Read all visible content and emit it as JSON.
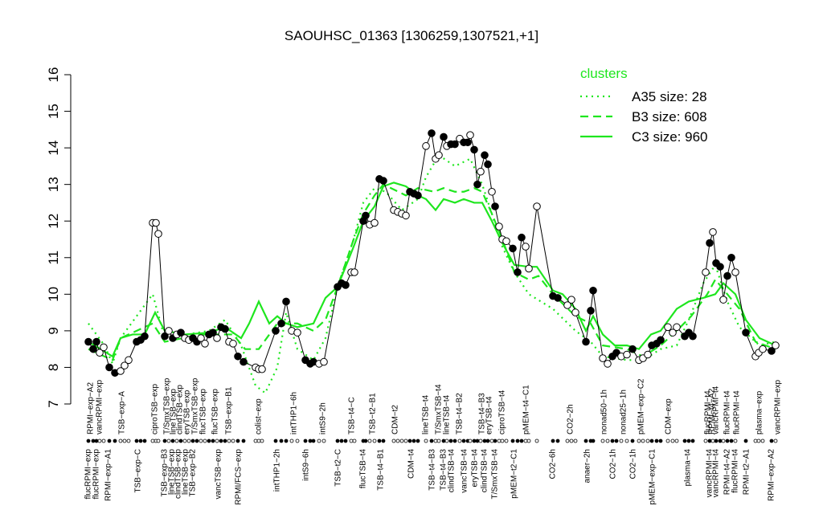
{
  "chart_data": {
    "type": "line",
    "title": "SAOUHSC_01363 [1306259,1307521,+1]",
    "ylim": [
      7,
      16
    ],
    "yticks": [
      7,
      8,
      9,
      10,
      11,
      12,
      13,
      14,
      15,
      16
    ],
    "xlim": [
      95,
      975
    ],
    "legend_title": "clusters",
    "legend_color": "#1ee61e",
    "series": [
      {
        "name": "A35 size: 28",
        "color": "#1ee61e",
        "dash": "dotted",
        "x": [
          110,
          130,
          140,
          150,
          190,
          205,
          260,
          280,
          300,
          318,
          330,
          345,
          356,
          370,
          390,
          405,
          420,
          440,
          452,
          466,
          480,
          500,
          520,
          530,
          546,
          566,
          585,
          600,
          612,
          625,
          640,
          658,
          688,
          716,
          735,
          750,
          780,
          800,
          822,
          842,
          857,
          875,
          890,
          905,
          920,
          945,
          965
        ],
        "values": [
          9.2,
          8.6,
          8.1,
          8.8,
          10.0,
          8.8,
          9.0,
          9.3,
          8.6,
          7.5,
          7.3,
          8.0,
          9.5,
          8.5,
          8.2,
          8.8,
          10.2,
          11.5,
          12.5,
          12.9,
          12.8,
          12.3,
          12.6,
          13.2,
          13.8,
          13.5,
          13.7,
          13.0,
          12.2,
          11.3,
          10.6,
          10.0,
          9.6,
          9.0,
          8.7,
          8.3,
          8.2,
          8.2,
          8.5,
          8.6,
          9.3,
          10.3,
          10.8,
          9.8,
          9.1,
          8.6,
          8.7
        ]
      },
      {
        "name": "B3 size: 608",
        "color": "#1ee61e",
        "dash": "dashed",
        "x": [
          110,
          140,
          150,
          190,
          205,
          250,
          290,
          305,
          322,
          345,
          370,
          390,
          405,
          420,
          440,
          452,
          466,
          477,
          505,
          520,
          540,
          552,
          566,
          577,
          590,
          600,
          612,
          625,
          640,
          658,
          670,
          688,
          716,
          735,
          750,
          780,
          800,
          822,
          842,
          860,
          880,
          890,
          905,
          920,
          940,
          965
        ],
        "values": [
          8.5,
          8.2,
          8.8,
          9.2,
          8.7,
          8.9,
          8.9,
          8.5,
          8.5,
          9.2,
          9.2,
          9.0,
          9.3,
          10.2,
          11.5,
          12.2,
          12.7,
          13.0,
          12.7,
          12.9,
          12.8,
          12.9,
          12.8,
          12.8,
          12.9,
          12.8,
          12.2,
          11.5,
          10.6,
          10.4,
          10.5,
          10.0,
          9.4,
          9.2,
          8.6,
          8.5,
          8.3,
          8.6,
          9.0,
          9.4,
          10.0,
          10.4,
          10.0,
          9.6,
          8.7,
          8.5
        ]
      },
      {
        "name": "C3 size: 960",
        "color": "#1ee61e",
        "dash": "solid",
        "x": [
          110,
          125,
          140,
          150,
          165,
          180,
          193,
          205,
          230,
          260,
          280,
          300,
          310,
          322,
          335,
          345,
          356,
          370,
          390,
          405,
          420,
          440,
          452,
          466,
          477,
          490,
          505,
          520,
          530,
          542,
          552,
          566,
          577,
          590,
          600,
          612,
          625,
          640,
          658,
          668,
          688,
          700,
          716,
          729,
          738,
          750,
          765,
          780,
          795,
          810,
          822,
          842,
          857,
          875,
          890,
          900,
          915,
          928,
          945,
          965
        ],
        "values": [
          8.7,
          8.5,
          8.3,
          8.8,
          8.9,
          8.9,
          9.5,
          9.0,
          8.9,
          8.95,
          9.1,
          8.8,
          9.2,
          9.8,
          9.2,
          9.4,
          9.2,
          9.1,
          9.2,
          9.9,
          10.2,
          11.3,
          12.0,
          12.4,
          12.95,
          13.05,
          12.95,
          12.7,
          12.6,
          12.3,
          12.6,
          12.5,
          12.6,
          12.5,
          12.5,
          12.0,
          11.4,
          10.8,
          10.75,
          10.75,
          10.1,
          10.0,
          9.6,
          9.0,
          9.4,
          8.9,
          8.6,
          8.6,
          8.5,
          8.9,
          9.0,
          9.6,
          9.8,
          9.9,
          10.0,
          10.3,
          10.0,
          9.3,
          8.8,
          8.6
        ]
      }
    ],
    "samples": {
      "x": [
        110,
        116,
        120,
        124,
        129,
        136,
        143,
        150,
        155,
        160,
        170,
        175,
        180,
        190,
        194,
        197,
        205,
        210,
        215,
        220,
        225,
        230,
        235,
        240,
        245,
        250,
        255,
        260,
        265,
        270,
        275,
        280,
        285,
        290,
        296,
        303,
        318,
        322,
        326,
        343,
        350,
        356,
        363,
        370,
        380,
        386,
        390,
        397,
        403,
        420,
        425,
        430,
        437,
        441,
        452,
        455,
        460,
        466,
        472,
        477,
        490,
        495,
        500,
        505,
        510,
        515,
        520,
        530,
        537,
        542,
        546,
        552,
        556,
        561,
        566,
        572,
        577,
        582,
        585,
        590,
        594,
        598,
        603,
        607,
        612,
        616,
        621,
        625,
        630,
        638,
        644,
        649,
        654,
        658,
        668,
        688,
        694,
        706,
        711,
        716,
        729,
        735,
        738,
        750,
        756,
        762,
        767,
        773,
        780,
        787,
        795,
        800,
        806,
        811,
        817,
        822,
        831,
        837,
        842,
        852,
        857,
        862,
        878,
        883,
        887,
        891,
        896,
        900,
        905,
        910,
        915,
        928,
        940,
        944,
        949,
        960,
        965
      ],
      "values": [
        8.7,
        8.5,
        8.7,
        8.4,
        8.55,
        8.0,
        7.85,
        7.9,
        8.05,
        8.2,
        8.7,
        8.75,
        8.85,
        11.95,
        11.95,
        11.65,
        8.85,
        9.0,
        8.8,
        8.9,
        8.95,
        8.8,
        8.75,
        8.8,
        8.7,
        8.8,
        8.65,
        8.9,
        8.95,
        8.8,
        9.1,
        9.05,
        8.7,
        8.65,
        8.3,
        8.15,
        8.0,
        7.95,
        7.95,
        9.0,
        9.2,
        9.8,
        9.0,
        8.95,
        8.2,
        8.1,
        8.15,
        8.1,
        8.15,
        10.2,
        10.3,
        10.25,
        10.6,
        10.6,
        12.0,
        12.15,
        11.9,
        11.95,
        13.15,
        13.1,
        12.3,
        12.25,
        12.2,
        12.15,
        12.8,
        12.75,
        12.7,
        14.05,
        14.4,
        13.7,
        13.8,
        14.3,
        14.05,
        14.1,
        14.1,
        14.25,
        14.15,
        14.15,
        14.35,
        13.95,
        13.0,
        13.35,
        13.8,
        13.55,
        12.8,
        12.4,
        11.85,
        11.5,
        11.45,
        11.25,
        10.6,
        11.55,
        11.3,
        10.7,
        12.4,
        9.95,
        9.9,
        9.7,
        9.85,
        9.5,
        8.7,
        9.55,
        10.1,
        8.25,
        8.1,
        8.3,
        8.4,
        8.3,
        8.35,
        8.5,
        8.2,
        8.25,
        8.35,
        8.6,
        8.65,
        8.75,
        9.1,
        8.95,
        9.1,
        8.85,
        8.95,
        8.85,
        10.6,
        11.4,
        11.7,
        10.85,
        10.75,
        9.85,
        10.5,
        11.0,
        10.6,
        8.95,
        8.3,
        8.4,
        8.5,
        8.45,
        8.6
      ],
      "filled": [
        true,
        true,
        true,
        false,
        false,
        true,
        true,
        false,
        false,
        false,
        true,
        true,
        true,
        false,
        false,
        false,
        true,
        false,
        true,
        false,
        true,
        false,
        false,
        true,
        true,
        false,
        false,
        true,
        true,
        false,
        true,
        true,
        false,
        false,
        true,
        true,
        false,
        false,
        false,
        true,
        true,
        true,
        false,
        false,
        true,
        true,
        true,
        false,
        false,
        true,
        true,
        true,
        false,
        false,
        true,
        true,
        false,
        false,
        true,
        true,
        false,
        false,
        false,
        false,
        true,
        true,
        true,
        false,
        true,
        false,
        false,
        true,
        false,
        true,
        true,
        false,
        true,
        true,
        false,
        true,
        true,
        false,
        true,
        true,
        false,
        true,
        false,
        false,
        false,
        true,
        true,
        true,
        false,
        false,
        false,
        true,
        true,
        false,
        false,
        false,
        true,
        true,
        true,
        false,
        false,
        true,
        true,
        false,
        false,
        true,
        false,
        false,
        false,
        true,
        true,
        true,
        false,
        false,
        false,
        true,
        true,
        true,
        false,
        true,
        false,
        true,
        true,
        false,
        true,
        true,
        false,
        true,
        false,
        false,
        false,
        true,
        false
      ]
    },
    "top_labels": [
      {
        "x": 113,
        "label": "RPMI−exp−A2"
      },
      {
        "x": 124,
        "label": "vancRPMI−exp"
      },
      {
        "x": 152,
        "label": "TSB−exp−A"
      },
      {
        "x": 193,
        "label": "ciproTSB−exp"
      },
      {
        "x": 208,
        "label": "T/SmxTSB−exp"
      },
      {
        "x": 216,
        "label": "lineTSB−exp"
      },
      {
        "x": 224,
        "label": "clindTSB−exp"
      },
      {
        "x": 233,
        "label": "eryTSB−exp"
      },
      {
        "x": 243,
        "label": "T/SmxTSB−exp"
      },
      {
        "x": 253,
        "label": "flucTSB−exp"
      },
      {
        "x": 268,
        "label": "flucTSB−exp"
      },
      {
        "x": 285,
        "label": "TSB−exp−B1"
      },
      {
        "x": 322,
        "label": "colist−exp"
      },
      {
        "x": 366,
        "label": "intTHP1−6h"
      },
      {
        "x": 402,
        "label": "intS9−2h"
      },
      {
        "x": 438,
        "label": "TSB−t4−C"
      },
      {
        "x": 464,
        "label": "TSB−t2−B1"
      },
      {
        "x": 492,
        "label": "CDM−t2"
      },
      {
        "x": 530,
        "label": "lineTSB−t4"
      },
      {
        "x": 546,
        "label": "T/SmxTSB−t4"
      },
      {
        "x": 556,
        "label": "lineTSB−t4"
      },
      {
        "x": 572,
        "label": "TSB−t4−B2"
      },
      {
        "x": 600,
        "label": "TSB−t4−B3"
      },
      {
        "x": 609,
        "label": "eryTSB−t4"
      },
      {
        "x": 625,
        "label": "ciproTSB−t4"
      },
      {
        "x": 655,
        "label": "pMEM−t4−C1"
      },
      {
        "x": 710,
        "label": "CO2−2h"
      },
      {
        "x": 752,
        "label": "nonad50−1h"
      },
      {
        "x": 776,
        "label": "nonad25−1h"
      },
      {
        "x": 798,
        "label": "pMEM−exp−C2"
      },
      {
        "x": 832,
        "label": "CDM−exp"
      },
      {
        "x": 881,
        "label": "flucRPMI−t4"
      },
      {
        "x": 886,
        "label": "RPMI−t4−A2"
      },
      {
        "x": 891,
        "label": "vancRPMI−t4"
      },
      {
        "x": 905,
        "label": "flucRPMI−t4"
      },
      {
        "x": 917,
        "label": "flucRPMI−t4"
      },
      {
        "x": 945,
        "label": "plasma−exp"
      },
      {
        "x": 968,
        "label": "vancRPMI−exp"
      }
    ],
    "bottom_labels": [
      {
        "x": 110,
        "label": "flucRPMI−exp"
      },
      {
        "x": 120,
        "label": "flucRPMI−exp"
      },
      {
        "x": 135,
        "label": "RPMI−exp−A1"
      },
      {
        "x": 172,
        "label": "TSB−exp−C"
      },
      {
        "x": 205,
        "label": "TSB−exp−B3"
      },
      {
        "x": 214,
        "label": "lineTSB−exp"
      },
      {
        "x": 222,
        "label": "clindTSB−exp"
      },
      {
        "x": 231,
        "label": "lineTSB−exp"
      },
      {
        "x": 240,
        "label": "TSB−exp−B2"
      },
      {
        "x": 272,
        "label": "vancTSB−exp"
      },
      {
        "x": 297,
        "label": "RPMI/FCS−exp"
      },
      {
        "x": 345,
        "label": "intTHP1−2h"
      },
      {
        "x": 381,
        "label": "intS9−6h"
      },
      {
        "x": 421,
        "label": "TSB−t2−C"
      },
      {
        "x": 452,
        "label": "flucTSB−t4"
      },
      {
        "x": 474,
        "label": "TSB−t4−B1"
      },
      {
        "x": 512,
        "label": "CDM−t4"
      },
      {
        "x": 538,
        "label": "TSB−t4−B3"
      },
      {
        "x": 552,
        "label": "TSB−t4−B3"
      },
      {
        "x": 562,
        "label": "clindTSB−t4"
      },
      {
        "x": 578,
        "label": "vancTSB−t4"
      },
      {
        "x": 591,
        "label": "eryTSB−t4"
      },
      {
        "x": 603,
        "label": "clindTSB−t4"
      },
      {
        "x": 616,
        "label": "T/SmxTSB−t4"
      },
      {
        "x": 640,
        "label": "pMEM−t2−C1"
      },
      {
        "x": 688,
        "label": "CO2−6h"
      },
      {
        "x": 731,
        "label": "anaer−2h"
      },
      {
        "x": 763,
        "label": "CO2−1h"
      },
      {
        "x": 788,
        "label": "CO2−1h"
      },
      {
        "x": 812,
        "label": "pMEM−exp−C1"
      },
      {
        "x": 856,
        "label": "plasma−t4"
      },
      {
        "x": 883,
        "label": "vancRPMI−t4"
      },
      {
        "x": 891,
        "label": "vancRPMI−t4"
      },
      {
        "x": 905,
        "label": "RPMI−t4−A2"
      },
      {
        "x": 915,
        "label": "flucRPMI−t4"
      },
      {
        "x": 929,
        "label": "RPMI−t2−A1"
      },
      {
        "x": 960,
        "label": "RPMI−exp−A2"
      }
    ]
  }
}
